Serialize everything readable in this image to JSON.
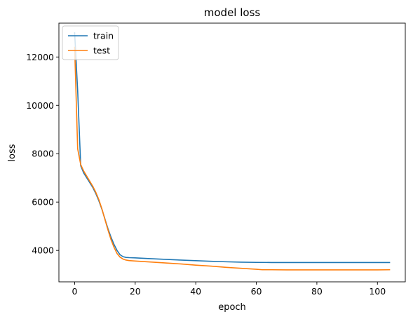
{
  "chart_data": {
    "type": "line",
    "title": "model loss",
    "xlabel": "epoch",
    "ylabel": "loss",
    "xlim": [
      -5.2,
      109.2
    ],
    "ylim": [
      2700,
      13400
    ],
    "xticks": [
      0,
      20,
      40,
      60,
      80,
      100
    ],
    "yticks": [
      4000,
      6000,
      8000,
      10000,
      12000
    ],
    "grid": false,
    "legend_position": "top-left",
    "series": [
      {
        "name": "train",
        "color": "#1f77b4",
        "points": [
          [
            0,
            13000
          ],
          [
            1,
            10600
          ],
          [
            2,
            7500
          ],
          [
            3,
            7200
          ],
          [
            4,
            7000
          ],
          [
            5,
            6800
          ],
          [
            6,
            6600
          ],
          [
            7,
            6350
          ],
          [
            8,
            6050
          ],
          [
            9,
            5700
          ],
          [
            10,
            5300
          ],
          [
            11,
            4900
          ],
          [
            12,
            4550
          ],
          [
            13,
            4250
          ],
          [
            14,
            4000
          ],
          [
            15,
            3820
          ],
          [
            16,
            3740
          ],
          [
            17,
            3710
          ],
          [
            18,
            3700
          ],
          [
            20,
            3690
          ],
          [
            25,
            3660
          ],
          [
            30,
            3630
          ],
          [
            35,
            3600
          ],
          [
            40,
            3575
          ],
          [
            45,
            3550
          ],
          [
            50,
            3530
          ],
          [
            55,
            3515
          ],
          [
            60,
            3505
          ],
          [
            65,
            3500
          ],
          [
            70,
            3500
          ],
          [
            75,
            3500
          ],
          [
            80,
            3500
          ],
          [
            85,
            3500
          ],
          [
            90,
            3500
          ],
          [
            95,
            3500
          ],
          [
            100,
            3500
          ],
          [
            104,
            3500
          ]
        ]
      },
      {
        "name": "test",
        "color": "#ff7f0e",
        "points": [
          [
            0,
            12400
          ],
          [
            1,
            8200
          ],
          [
            2,
            7550
          ],
          [
            3,
            7280
          ],
          [
            4,
            7070
          ],
          [
            5,
            6860
          ],
          [
            6,
            6650
          ],
          [
            7,
            6400
          ],
          [
            8,
            6100
          ],
          [
            9,
            5720
          ],
          [
            10,
            5280
          ],
          [
            11,
            4850
          ],
          [
            12,
            4450
          ],
          [
            13,
            4130
          ],
          [
            14,
            3870
          ],
          [
            15,
            3720
          ],
          [
            16,
            3640
          ],
          [
            17,
            3600
          ],
          [
            18,
            3580
          ],
          [
            20,
            3560
          ],
          [
            25,
            3520
          ],
          [
            30,
            3480
          ],
          [
            35,
            3440
          ],
          [
            40,
            3390
          ],
          [
            45,
            3350
          ],
          [
            50,
            3300
          ],
          [
            55,
            3260
          ],
          [
            60,
            3220
          ],
          [
            62,
            3200
          ],
          [
            65,
            3200
          ],
          [
            70,
            3195
          ],
          [
            75,
            3195
          ],
          [
            80,
            3195
          ],
          [
            85,
            3195
          ],
          [
            90,
            3195
          ],
          [
            95,
            3195
          ],
          [
            100,
            3195
          ],
          [
            104,
            3200
          ]
        ]
      }
    ]
  }
}
